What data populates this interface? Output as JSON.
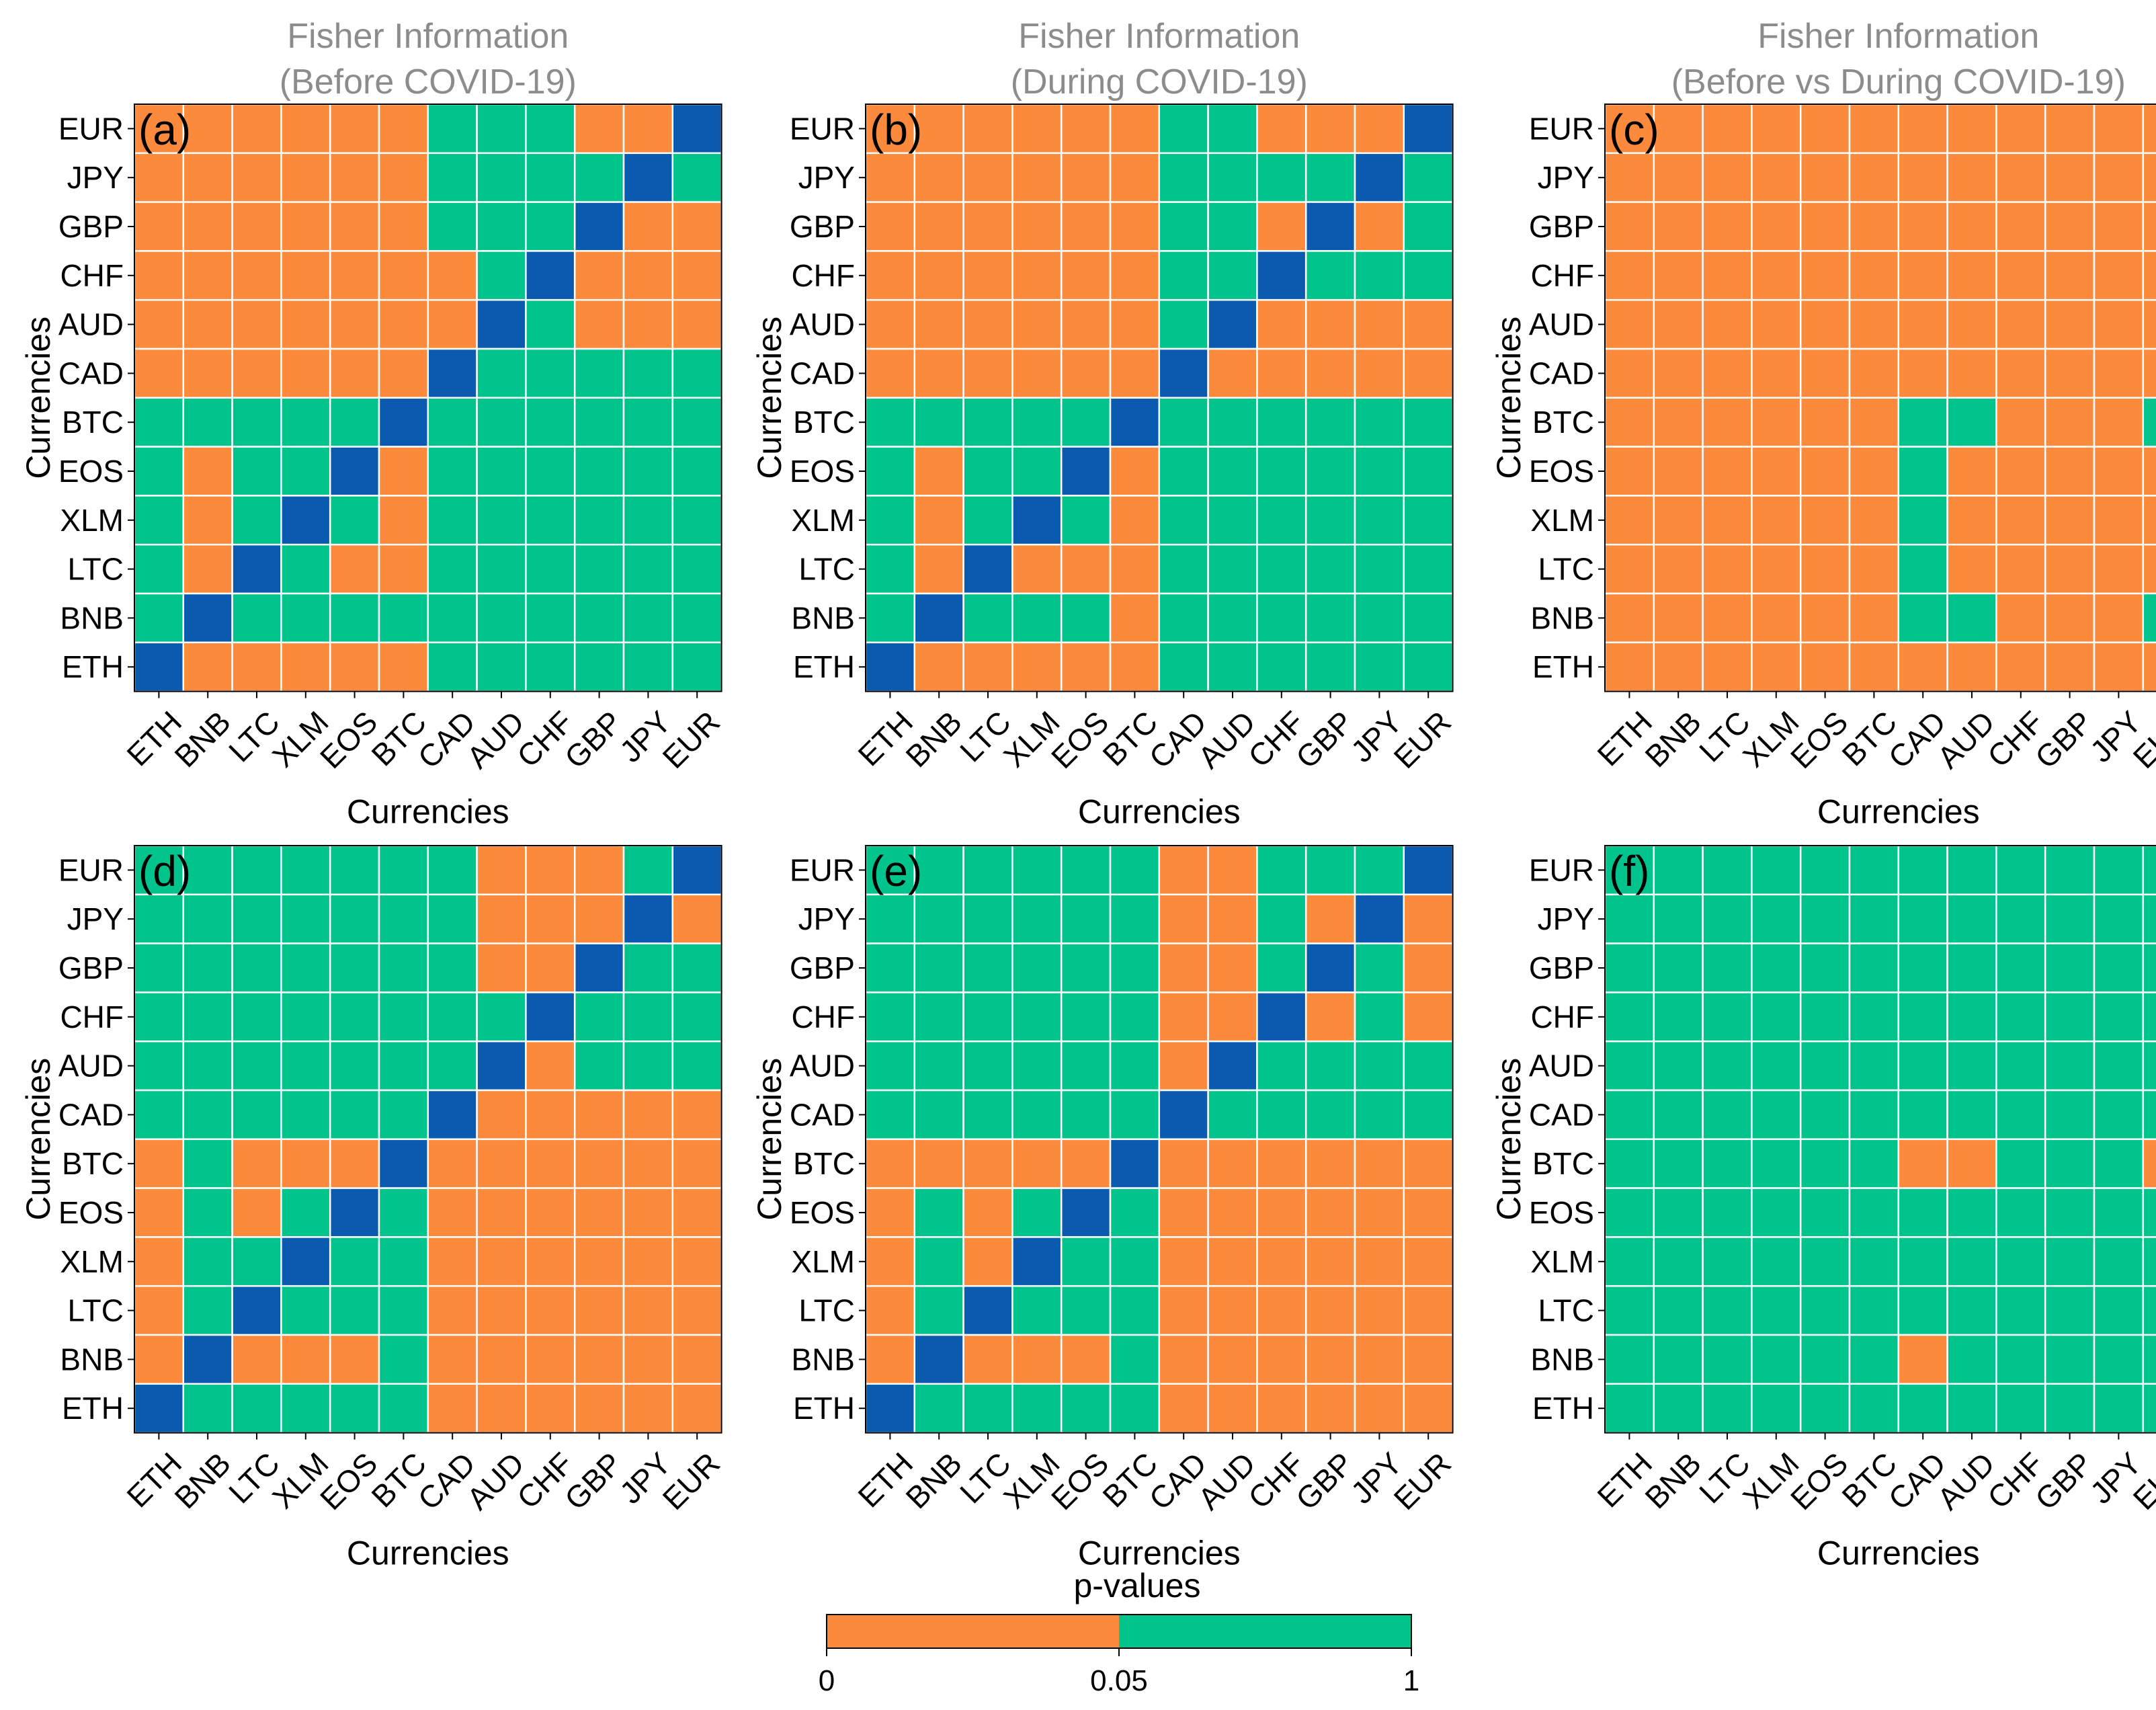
{
  "colors": {
    "low": "#fb8a3d",
    "high": "#00c48b",
    "diagonal": "#0a5ab0",
    "grid": "#ffffff",
    "title": "#8c8c8c"
  },
  "colorbar": {
    "title": "p-values",
    "ticks": [
      "0",
      "0.05",
      "1"
    ],
    "threshold": 0.05
  },
  "chart_data": [
    {
      "id": "a",
      "type": "heatmap",
      "label": "(a)",
      "title_line1": "Fisher Information",
      "title_line2": "(Before COVID-19)",
      "xlabel": "Currencies",
      "ylabel": "Currencies",
      "x": [
        "ETH",
        "BNB",
        "LTC",
        "XLM",
        "EOS",
        "BTC",
        "CAD",
        "AUD",
        "CHF",
        "GBP",
        "JPY",
        "EUR"
      ],
      "y_top_to_bottom": [
        "EUR",
        "JPY",
        "GBP",
        "CHF",
        "AUD",
        "CAD",
        "BTC",
        "EOS",
        "XLM",
        "LTC",
        "BNB",
        "ETH"
      ],
      "cells_legend": "L = p<0.05, H = p>=0.05, D = diagonal",
      "rows": [
        "LLLLLLHHHLLD",
        "LLLLLLHHHHDH",
        "LLLLLLHHHDLL",
        "LLLLLLLHDLLL",
        "LLLLLLLDHLLL",
        "LLLLLLDHHHHH",
        "HHHHHDHHHHHH",
        "HLHHDLHHHHHH",
        "HLHDHLHHHHHH",
        "HLDHLLHHHHHH",
        "HDHHHHHHHHHH",
        "DLLLLLHHHHHH"
      ]
    },
    {
      "id": "b",
      "type": "heatmap",
      "label": "(b)",
      "title_line1": "Fisher Information",
      "title_line2": "(During COVID-19)",
      "xlabel": "Currencies",
      "ylabel": "Currencies",
      "x": [
        "ETH",
        "BNB",
        "LTC",
        "XLM",
        "EOS",
        "BTC",
        "CAD",
        "AUD",
        "CHF",
        "GBP",
        "JPY",
        "EUR"
      ],
      "y_top_to_bottom": [
        "EUR",
        "JPY",
        "GBP",
        "CHF",
        "AUD",
        "CAD",
        "BTC",
        "EOS",
        "XLM",
        "LTC",
        "BNB",
        "ETH"
      ],
      "cells_legend": "L = p<0.05, H = p>=0.05, D = diagonal",
      "rows": [
        "LLLLLLHHLLLD",
        "LLLLLLHHHHDH",
        "LLLLLLHHLDLH",
        "LLLLLLHHDHHH",
        "LLLLLLHDLLLL",
        "LLLLLLDLLLLL",
        "HHHHHDHHHHHH",
        "HLHHDLHHHHHH",
        "HLHDHLHHHHHH",
        "HLDLLLHHHHHH",
        "HDHHHLHHHHHH",
        "DLLLLLHHHHHH"
      ]
    },
    {
      "id": "c",
      "type": "heatmap",
      "label": "(c)",
      "title_line1": "Fisher Information",
      "title_line2": "(Before vs During COVID-19)",
      "xlabel": "Currencies",
      "ylabel": "Currencies",
      "x": [
        "ETH",
        "BNB",
        "LTC",
        "XLM",
        "EOS",
        "BTC",
        "CAD",
        "AUD",
        "CHF",
        "GBP",
        "JPY",
        "EUR"
      ],
      "y_top_to_bottom": [
        "EUR",
        "JPY",
        "GBP",
        "CHF",
        "AUD",
        "CAD",
        "BTC",
        "EOS",
        "XLM",
        "LTC",
        "BNB",
        "ETH"
      ],
      "cells_legend": "L = p<0.05, H = p>=0.05",
      "rows": [
        "LLLLLLLLLLLL",
        "LLLLLLLLLLLL",
        "LLLLLLLLLLLL",
        "LLLLLLLLLLLL",
        "LLLLLLLLLLLL",
        "LLLLLLLLLLLL",
        "LLLLLLHHLLLH",
        "LLLLLLHLLLLL",
        "LLLLLLHLLLLL",
        "LLLLLLHLLLLL",
        "LLLLLLHHLLLH",
        "LLLLLLLLLLLL"
      ]
    },
    {
      "id": "d",
      "type": "heatmap",
      "label": "(d)",
      "title_line1": "",
      "title_line2": "",
      "xlabel": "Currencies",
      "ylabel": "Currencies",
      "x": [
        "ETH",
        "BNB",
        "LTC",
        "XLM",
        "EOS",
        "BTC",
        "CAD",
        "AUD",
        "CHF",
        "GBP",
        "JPY",
        "EUR"
      ],
      "y_top_to_bottom": [
        "EUR",
        "JPY",
        "GBP",
        "CHF",
        "AUD",
        "CAD",
        "BTC",
        "EOS",
        "XLM",
        "LTC",
        "BNB",
        "ETH"
      ],
      "cells_legend": "L = p<0.05, H = p>=0.05, D = diagonal",
      "rows": [
        "HHHHHHHLLLHD",
        "HHHHHHHLLLDL",
        "HHHHHHHLLDHH",
        "HHHHHHHHDHHH",
        "HHHHHHHDLHHH",
        "HHHHHHDLLLLL",
        "LHLLLDLLLLLL",
        "LHLHDHLLLLLL",
        "LHHDHHLLLLLL",
        "LHDHHHLLLLLL",
        "LDLLLHLLLLLL",
        "DHHHHHLLLLLL"
      ]
    },
    {
      "id": "e",
      "type": "heatmap",
      "label": "(e)",
      "title_line1": "",
      "title_line2": "",
      "xlabel": "Currencies",
      "ylabel": "Currencies",
      "x": [
        "ETH",
        "BNB",
        "LTC",
        "XLM",
        "EOS",
        "BTC",
        "CAD",
        "AUD",
        "CHF",
        "GBP",
        "JPY",
        "EUR"
      ],
      "y_top_to_bottom": [
        "EUR",
        "JPY",
        "GBP",
        "CHF",
        "AUD",
        "CAD",
        "BTC",
        "EOS",
        "XLM",
        "LTC",
        "BNB",
        "ETH"
      ],
      "cells_legend": "L = p<0.05, H = p>=0.05, D = diagonal",
      "rows": [
        "HHHHHHLLHHHD",
        "HHHHHHLLHLDL",
        "HHHHHHLLHDHL",
        "HHHHHHLLDLHL",
        "HHHHHHLDHHHH",
        "HHHHHHDHHHHH",
        "LLLLLDLLLLLL",
        "LHLHDHLLLLLL",
        "LHLDHHLLLLLL",
        "LHDHHHLLLLLL",
        "LDLLLHLLLLLL",
        "DHHHHHLLLLLL"
      ]
    },
    {
      "id": "f",
      "type": "heatmap",
      "label": "(f)",
      "title_line1": "",
      "title_line2": "",
      "xlabel": "Currencies",
      "ylabel": "Currencies",
      "x": [
        "ETH",
        "BNB",
        "LTC",
        "XLM",
        "EOS",
        "BTC",
        "CAD",
        "AUD",
        "CHF",
        "GBP",
        "JPY",
        "EUR"
      ],
      "y_top_to_bottom": [
        "EUR",
        "JPY",
        "GBP",
        "CHF",
        "AUD",
        "CAD",
        "BTC",
        "EOS",
        "XLM",
        "LTC",
        "BNB",
        "ETH"
      ],
      "cells_legend": "L = p<0.05, H = p>=0.05",
      "rows": [
        "HHHHHHHHHHHH",
        "HHHHHHHHHHHH",
        "HHHHHHHHHHHH",
        "HHHHHHHHHHHH",
        "HHHHHHHHHHHH",
        "HHHHHHHHHHHH",
        "HHHHHHLLHHHL",
        "HHHHHHHHHHHH",
        "HHHHHHHHHHHH",
        "HHHHHHHHHHHH",
        "HHHHHHLHHHHH",
        "HHHHHHHHHHHH"
      ]
    }
  ]
}
